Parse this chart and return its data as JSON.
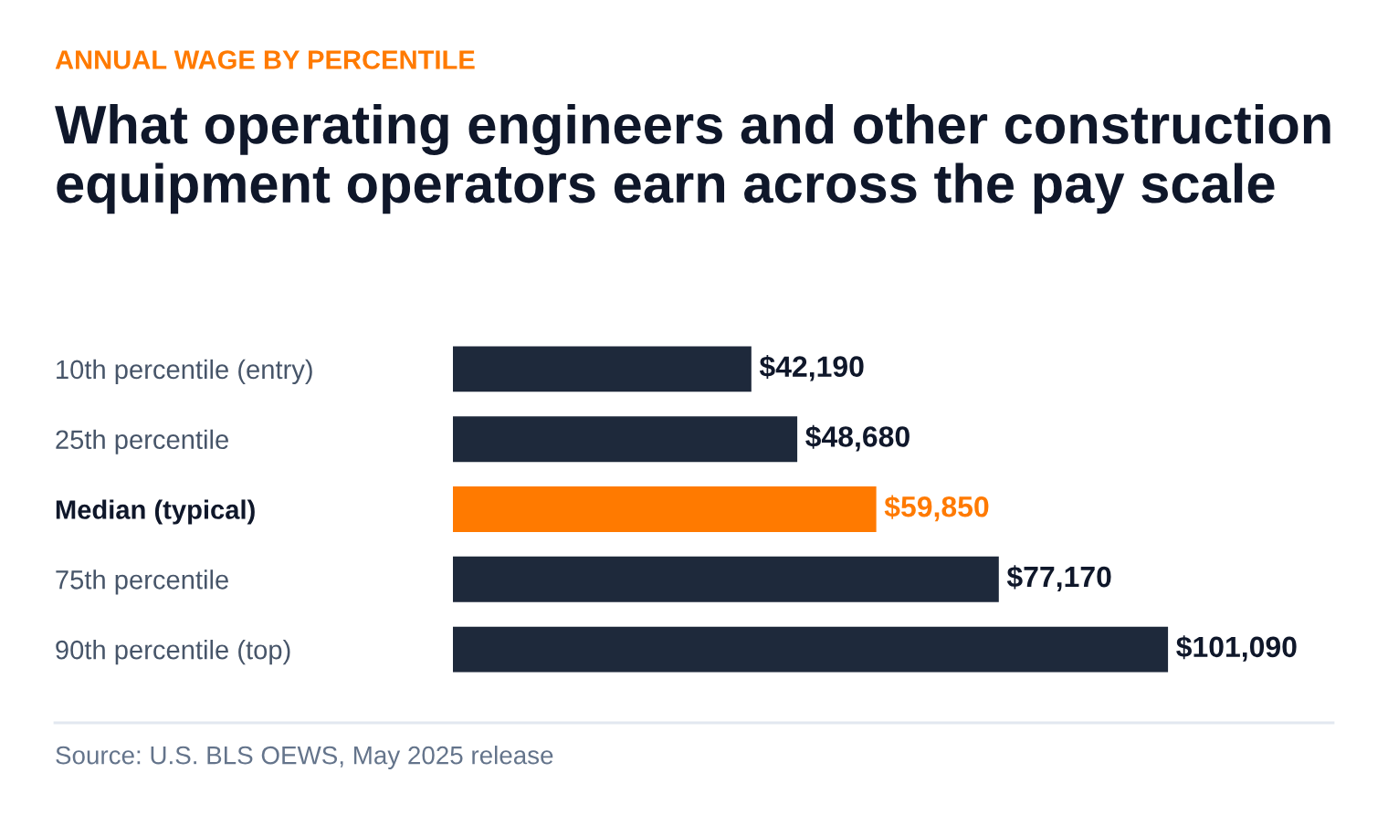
{
  "chart_data": {
    "type": "bar",
    "orientation": "horizontal",
    "subtitle": "ANNUAL WAGE BY PERCENTILE",
    "title": "What operating engineers and other construction equipment operators earn across the pay scale",
    "categories": [
      "10th percentile (entry)",
      "25th percentile",
      "Median (typical)",
      "75th percentile",
      "90th percentile (top)"
    ],
    "values": [
      42190,
      48680,
      59850,
      77170,
      101090
    ],
    "value_labels": [
      "$42,190",
      "$48,680",
      "$59,850",
      "$77,170",
      "$101,090"
    ],
    "colors": [
      "#1e293b",
      "#1e293b",
      "#ff7a00",
      "#1e293b",
      "#1e293b"
    ],
    "tick_labels": "y",
    "grid": false,
    "legend": false,
    "annotations": [
      "Source: U.S. BLS OEWS, May 2025 release"
    ]
  }
}
